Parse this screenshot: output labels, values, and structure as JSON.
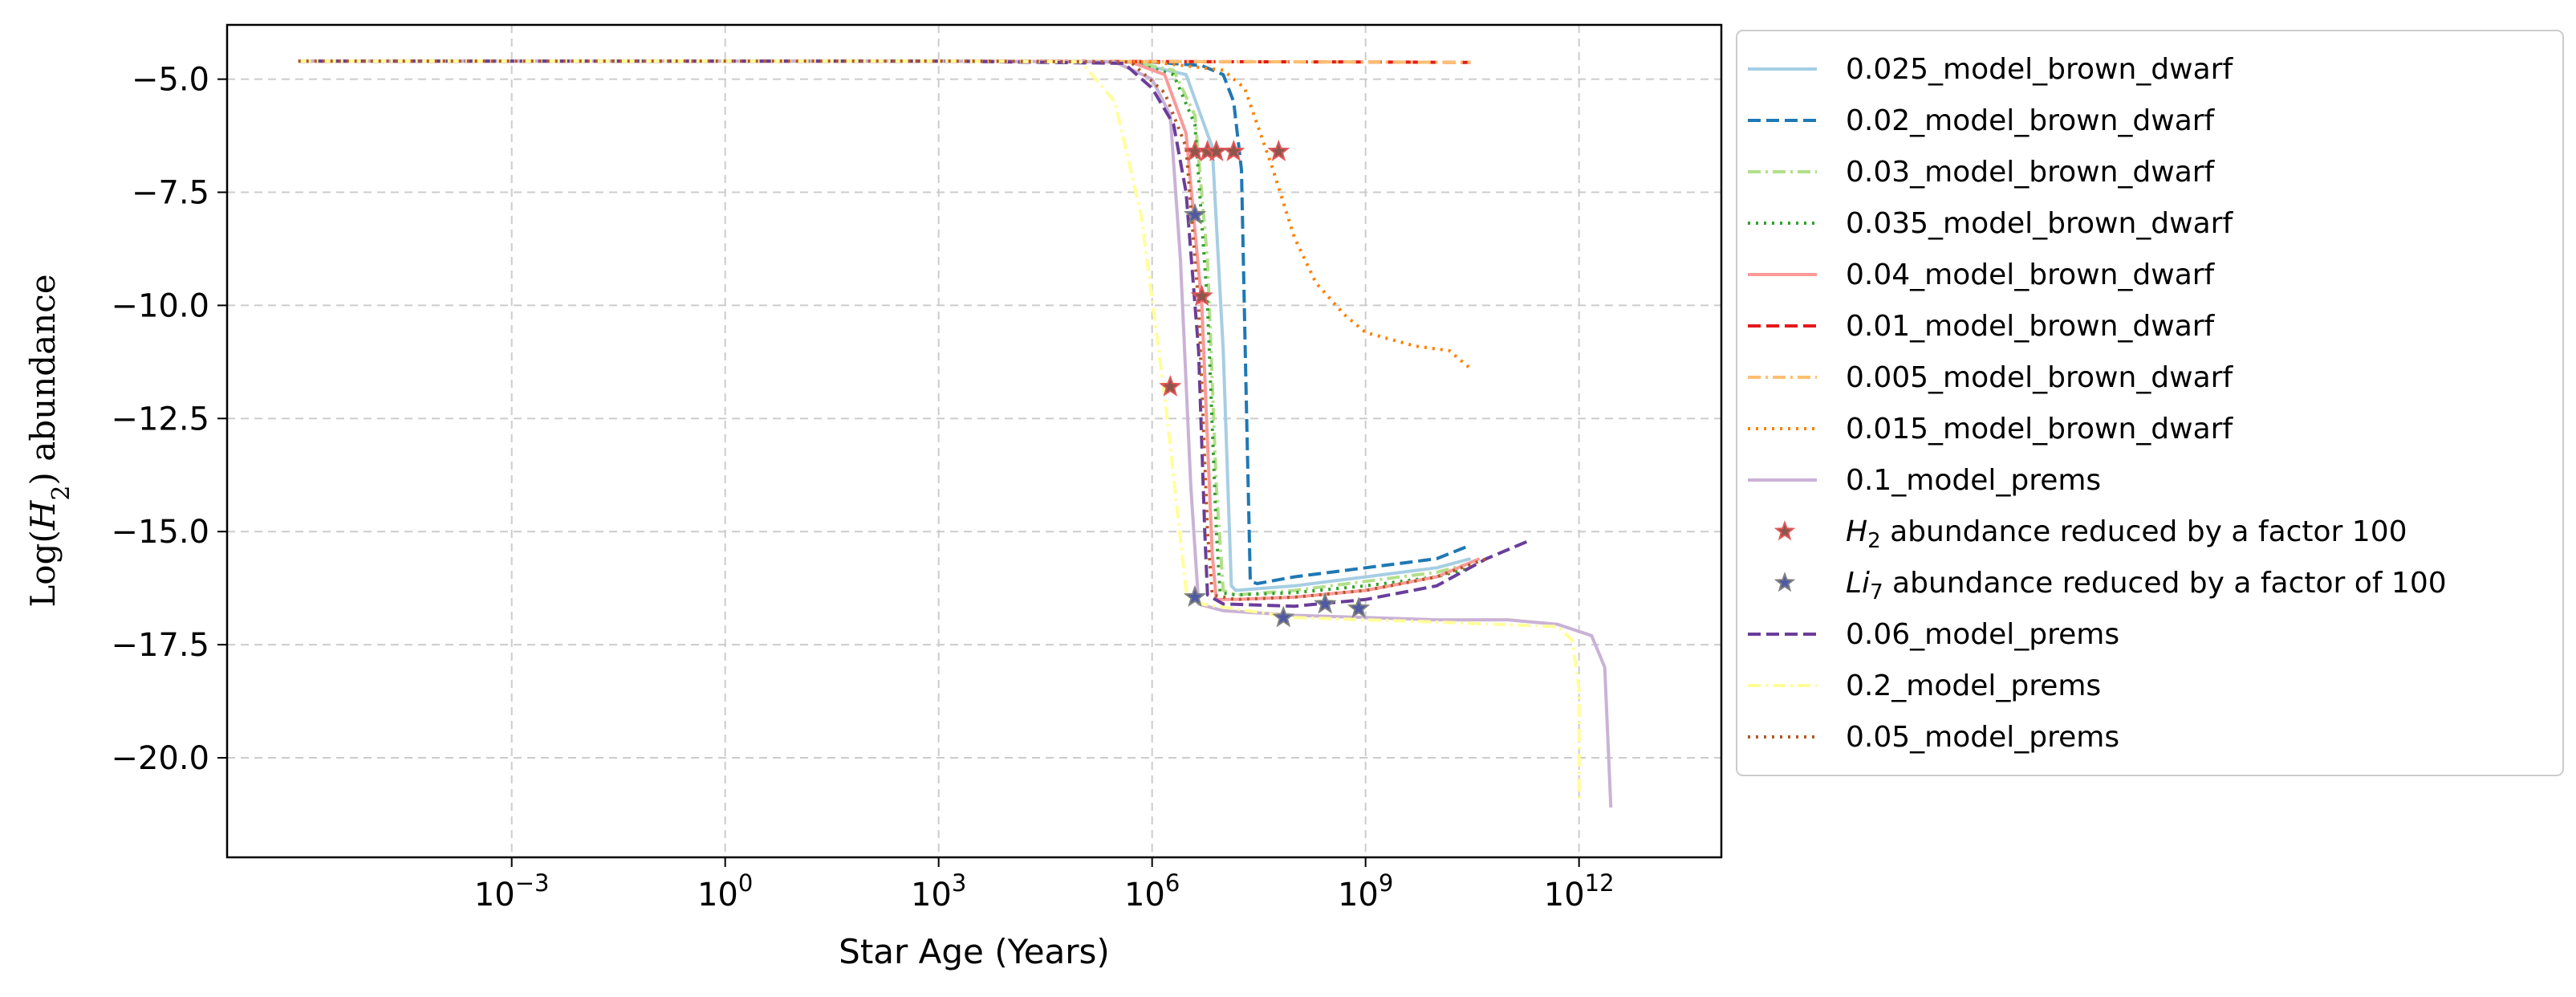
{
  "chart_data": {
    "type": "line",
    "xlabel": "Star Age (Years)",
    "ylabel": "Log(H_2) abundance",
    "x_scale": "log",
    "xlim": [
      1e-07,
      100000000000000.0
    ],
    "ylim": [
      -22.2,
      -3.8
    ],
    "grid": true,
    "legend_position": "outside-right",
    "x_ticks": [
      {
        "value": 0.001,
        "base": "10",
        "exp": "−3"
      },
      {
        "value": 1,
        "base": "10",
        "exp": "0"
      },
      {
        "value": 1000,
        "base": "10",
        "exp": "3"
      },
      {
        "value": 1000000,
        "base": "10",
        "exp": "6"
      },
      {
        "value": 1000000000,
        "base": "10",
        "exp": "9"
      },
      {
        "value": 1000000000000,
        "base": "10",
        "exp": "12"
      }
    ],
    "y_ticks": [
      {
        "value": -5.0,
        "label": "−5.0"
      },
      {
        "value": -7.5,
        "label": "−7.5"
      },
      {
        "value": -10.0,
        "label": "−10.0"
      },
      {
        "value": -12.5,
        "label": "−12.5"
      },
      {
        "value": -15.0,
        "label": "−15.0"
      },
      {
        "value": -17.5,
        "label": "−17.5"
      },
      {
        "value": -20.0,
        "label": "−20.0"
      }
    ],
    "series": [
      {
        "name": "0.025_model_brown_dwarf",
        "color": "#a6cee3",
        "dash": "solid",
        "points": [
          [
            1e-06,
            -4.6
          ],
          [
            1000.0,
            -4.6
          ],
          [
            500000.0,
            -4.62
          ],
          [
            3000000.0,
            -4.9
          ],
          [
            7000000.0,
            -6.5
          ],
          [
            10000000.0,
            -11.0
          ],
          [
            13000000.0,
            -16.2
          ],
          [
            15000000.0,
            -16.3
          ],
          [
            100000000.0,
            -16.2
          ],
          [
            1000000000.0,
            -16.0
          ],
          [
            10000000000.0,
            -15.8
          ],
          [
            30000000000.0,
            -15.6
          ]
        ]
      },
      {
        "name": "0.02_model_brown_dwarf",
        "color": "#1f78b4",
        "dash": "dashed",
        "points": [
          [
            1e-06,
            -4.6
          ],
          [
            1000.0,
            -4.6
          ],
          [
            1000000.0,
            -4.62
          ],
          [
            5000000.0,
            -4.7
          ],
          [
            10000000.0,
            -4.9
          ],
          [
            14000000.0,
            -5.5
          ],
          [
            18000000.0,
            -7.0
          ],
          [
            21000000.0,
            -12.0
          ],
          [
            24000000.0,
            -16.1
          ],
          [
            30000000.0,
            -16.15
          ],
          [
            100000000.0,
            -16.0
          ],
          [
            1000000000.0,
            -15.8
          ],
          [
            10000000000.0,
            -15.6
          ],
          [
            30000000000.0,
            -15.3
          ]
        ]
      },
      {
        "name": "0.03_model_brown_dwarf",
        "color": "#b2df8a",
        "dash": "dashdot",
        "points": [
          [
            1e-06,
            -4.6
          ],
          [
            1000.0,
            -4.6
          ],
          [
            500000.0,
            -4.62
          ],
          [
            2000000.0,
            -4.8
          ],
          [
            4000000.0,
            -5.8
          ],
          [
            6000000.0,
            -9.0
          ],
          [
            8000000.0,
            -14.0
          ],
          [
            10000000.0,
            -16.3
          ],
          [
            15000000.0,
            -16.4
          ],
          [
            100000000.0,
            -16.3
          ],
          [
            1000000000.0,
            -16.1
          ],
          [
            10000000000.0,
            -15.9
          ],
          [
            30000000000.0,
            -15.7
          ]
        ]
      },
      {
        "name": "0.035_model_brown_dwarf",
        "color": "#33a02c",
        "dash": "dotted",
        "points": [
          [
            1e-06,
            -4.6
          ],
          [
            1000.0,
            -4.6
          ],
          [
            500000.0,
            -4.62
          ],
          [
            2000000.0,
            -4.9
          ],
          [
            4000000.0,
            -6.0
          ],
          [
            6000000.0,
            -10.0
          ],
          [
            8000000.0,
            -15.0
          ],
          [
            9000000.0,
            -16.35
          ],
          [
            15000000.0,
            -16.4
          ],
          [
            100000000.0,
            -16.35
          ],
          [
            1000000000.0,
            -16.2
          ],
          [
            10000000000.0,
            -16.0
          ],
          [
            30000000000.0,
            -15.8
          ]
        ]
      },
      {
        "name": "0.04_model_brown_dwarf",
        "color": "#fb9a99",
        "dash": "solid",
        "points": [
          [
            1e-06,
            -4.6
          ],
          [
            1000.0,
            -4.6
          ],
          [
            500000.0,
            -4.62
          ],
          [
            1500000.0,
            -4.9
          ],
          [
            3000000.0,
            -6.2
          ],
          [
            5000000.0,
            -10.0
          ],
          [
            7000000.0,
            -15.5
          ],
          [
            8000000.0,
            -16.5
          ],
          [
            15000000.0,
            -16.5
          ],
          [
            100000000.0,
            -16.45
          ],
          [
            1000000000.0,
            -16.3
          ],
          [
            10000000000.0,
            -16.0
          ],
          [
            40000000000.0,
            -15.6
          ]
        ]
      },
      {
        "name": "0.01_model_brown_dwarf",
        "color": "#e31a1c",
        "dash": "dashed",
        "points": [
          [
            1e-06,
            -4.6
          ],
          [
            1000.0,
            -4.6
          ],
          [
            1000000.0,
            -4.61
          ],
          [
            1000000000.0,
            -4.62
          ],
          [
            30000000000.0,
            -4.63
          ]
        ]
      },
      {
        "name": "0.005_model_brown_dwarf",
        "color": "#fdbf6f",
        "dash": "dashdot",
        "points": [
          [
            1e-06,
            -4.6
          ],
          [
            1000.0,
            -4.6
          ],
          [
            1000000.0,
            -4.61
          ],
          [
            1000000000.0,
            -4.62
          ],
          [
            30000000000.0,
            -4.63
          ]
        ]
      },
      {
        "name": "0.015_model_brown_dwarf",
        "color": "#ff7f00",
        "dash": "dotted",
        "points": [
          [
            1e-06,
            -4.6
          ],
          [
            1000.0,
            -4.6
          ],
          [
            1000000.0,
            -4.62
          ],
          [
            10000000.0,
            -4.8
          ],
          [
            20000000.0,
            -5.2
          ],
          [
            50000000.0,
            -7.0
          ],
          [
            100000000.0,
            -8.5
          ],
          [
            200000000.0,
            -9.5
          ],
          [
            500000000.0,
            -10.2
          ],
          [
            1000000000.0,
            -10.6
          ],
          [
            5000000000.0,
            -10.9
          ],
          [
            15000000000.0,
            -11.0
          ],
          [
            30000000000.0,
            -11.4
          ]
        ]
      },
      {
        "name": "0.1_model_prems",
        "color": "#cab2d6",
        "dash": "solid",
        "points": [
          [
            1e-06,
            -4.6
          ],
          [
            1000.0,
            -4.6
          ],
          [
            300000.0,
            -4.62
          ],
          [
            1000000.0,
            -5.0
          ],
          [
            1800000.0,
            -5.8
          ],
          [
            2500000.0,
            -9.0
          ],
          [
            3500000.0,
            -14.0
          ],
          [
            4500000.0,
            -16.6
          ],
          [
            10000000.0,
            -16.75
          ],
          [
            100000000.0,
            -16.85
          ],
          [
            1000000000.0,
            -16.9
          ],
          [
            10000000000.0,
            -16.95
          ],
          [
            100000000000.0,
            -16.95
          ],
          [
            500000000000.0,
            -17.05
          ],
          [
            1500000000000.0,
            -17.3
          ],
          [
            2300000000000.0,
            -18.0
          ],
          [
            2800000000000.0,
            -21.1
          ]
        ]
      },
      {
        "name": "0.06_model_prems",
        "color": "#6a3d9a",
        "dash": "dashed",
        "points": [
          [
            1e-06,
            -4.6
          ],
          [
            1000.0,
            -4.6
          ],
          [
            400000.0,
            -4.65
          ],
          [
            1000000.0,
            -5.2
          ],
          [
            2000000.0,
            -6.0
          ],
          [
            3000000.0,
            -7.5
          ],
          [
            4500000.0,
            -11.0
          ],
          [
            5500000.0,
            -15.0
          ],
          [
            6000000.0,
            -16.4
          ],
          [
            10000000.0,
            -16.6
          ],
          [
            100000000.0,
            -16.65
          ],
          [
            1000000000.0,
            -16.5
          ],
          [
            10000000000.0,
            -16.2
          ],
          [
            50000000000.0,
            -15.6
          ],
          [
            200000000000.0,
            -15.2
          ]
        ]
      },
      {
        "name": "0.2_model_prems",
        "color": "#ffff99",
        "dash": "dashdot",
        "points": [
          [
            1e-06,
            -4.6
          ],
          [
            1000.0,
            -4.6
          ],
          [
            100000.0,
            -4.62
          ],
          [
            300000.0,
            -5.5
          ],
          [
            700000.0,
            -8.0
          ],
          [
            1500000.0,
            -12.0
          ],
          [
            3000000.0,
            -16.3
          ],
          [
            5000000.0,
            -16.6
          ],
          [
            100000000.0,
            -16.9
          ],
          [
            10000000000.0,
            -17.0
          ],
          [
            500000000000.0,
            -17.1
          ],
          [
            800000000000.0,
            -17.4
          ],
          [
            1000000000000.0,
            -18.5
          ],
          [
            1000000000000.0,
            -21.0
          ]
        ]
      },
      {
        "name": "0.05_model_prems",
        "color": "#b15928",
        "dash": "dotted",
        "points": [
          [
            1e-06,
            -4.6
          ],
          [
            1000.0,
            -4.6
          ],
          [
            500000.0,
            -4.62
          ],
          [
            1500000.0,
            -5.3
          ],
          [
            3000000.0,
            -6.5
          ],
          [
            4500000.0,
            -10.0
          ],
          [
            6000000.0,
            -15.0
          ],
          [
            7000000.0,
            -16.4
          ],
          [
            15000000.0,
            -16.5
          ],
          [
            100000000.0,
            -16.45
          ],
          [
            1000000000.0,
            -16.3
          ],
          [
            10000000000.0,
            -16.0
          ],
          [
            50000000000.0,
            -15.6
          ]
        ]
      }
    ],
    "marker_series": [
      {
        "name_parts": [
          "H",
          "2",
          " abundance reduced by a factor 100"
        ],
        "color": "#8c564b",
        "edge": "#e15759",
        "points": [
          [
            1800000.0,
            -11.8
          ],
          [
            4000000.0,
            -6.6
          ],
          [
            6000000.0,
            -6.6
          ],
          [
            8000000.0,
            -6.6
          ],
          [
            14000000.0,
            -6.6
          ],
          [
            60000000.0,
            -6.6
          ],
          [
            5000000.0,
            -9.8
          ]
        ]
      },
      {
        "name_parts": [
          "Li",
          "7",
          " abundance reduced by a factor of 100"
        ],
        "color": "#4e5aa6",
        "edge": "#7f7f7f",
        "points": [
          [
            4000000.0,
            -8.0
          ],
          [
            4000000.0,
            -16.45
          ],
          [
            70000000.0,
            -16.9
          ],
          [
            270000000.0,
            -16.6
          ],
          [
            800000000.0,
            -16.7
          ]
        ]
      }
    ],
    "legend_order": [
      "0.025_model_brown_dwarf",
      "0.02_model_brown_dwarf",
      "0.03_model_brown_dwarf",
      "0.035_model_brown_dwarf",
      "0.04_model_brown_dwarf",
      "0.01_model_brown_dwarf",
      "0.005_model_brown_dwarf",
      "0.015_model_brown_dwarf",
      "0.1_model_prems",
      "M0",
      "M1",
      "0.06_model_prems",
      "0.2_model_prems",
      "0.05_model_prems"
    ]
  }
}
